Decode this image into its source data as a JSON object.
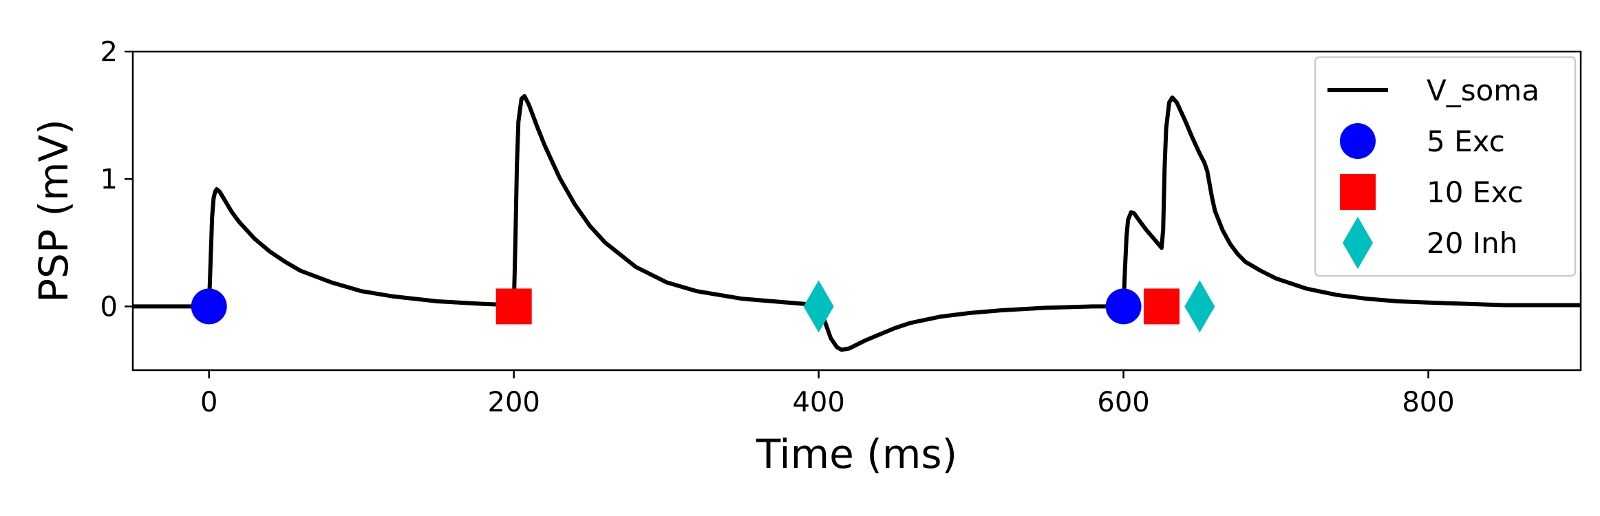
{
  "chart_data": {
    "type": "line",
    "title": "",
    "xlabel": "Time (ms)",
    "ylabel": "PSP (mV)",
    "xlim": [
      -50,
      900
    ],
    "ylim": [
      -0.5,
      2
    ],
    "xticks": [
      0,
      200,
      400,
      600,
      800
    ],
    "yticks": [
      0,
      1,
      2
    ],
    "grid": false,
    "legend_position": "top-right",
    "series": [
      {
        "name": "V_soma",
        "kind": "line",
        "color": "#000000",
        "x": [
          -50,
          0,
          1,
          2,
          3,
          4,
          5,
          7,
          10,
          15,
          20,
          30,
          40,
          50,
          60,
          80,
          100,
          120,
          150,
          180,
          200,
          201,
          202,
          203,
          205,
          207,
          210,
          215,
          220,
          230,
          240,
          250,
          260,
          280,
          300,
          320,
          350,
          380,
          400,
          402,
          405,
          408,
          412,
          415,
          420,
          425,
          430,
          440,
          450,
          460,
          480,
          500,
          520,
          550,
          580,
          600,
          601,
          602,
          603,
          605,
          607,
          610,
          615,
          620,
          625,
          626,
          627,
          628,
          630,
          632,
          635,
          640,
          645,
          650,
          653,
          655,
          658,
          660,
          665,
          670,
          675,
          680,
          690,
          700,
          720,
          740,
          760,
          780,
          800,
          850,
          900
        ],
        "y": [
          0,
          0,
          0.35,
          0.7,
          0.85,
          0.9,
          0.92,
          0.9,
          0.84,
          0.74,
          0.66,
          0.53,
          0.43,
          0.35,
          0.28,
          0.19,
          0.12,
          0.08,
          0.04,
          0.02,
          0.01,
          0.5,
          1.1,
          1.45,
          1.63,
          1.65,
          1.58,
          1.42,
          1.27,
          1.01,
          0.8,
          0.63,
          0.5,
          0.31,
          0.19,
          0.12,
          0.06,
          0.03,
          0.01,
          -0.05,
          -0.15,
          -0.25,
          -0.32,
          -0.34,
          -0.33,
          -0.3,
          -0.27,
          -0.22,
          -0.17,
          -0.13,
          -0.08,
          -0.05,
          -0.03,
          -0.01,
          0,
          0,
          0.3,
          0.55,
          0.68,
          0.74,
          0.73,
          0.68,
          0.6,
          0.53,
          0.46,
          0.6,
          1.1,
          1.4,
          1.6,
          1.64,
          1.6,
          1.47,
          1.33,
          1.2,
          1.13,
          1.06,
          0.86,
          0.75,
          0.6,
          0.49,
          0.41,
          0.35,
          0.28,
          0.22,
          0.14,
          0.09,
          0.06,
          0.04,
          0.03,
          0.01,
          0.01
        ]
      },
      {
        "name": "5 Exc",
        "kind": "marker",
        "marker": "circle",
        "color": "#0000ff",
        "x": [
          0,
          600
        ],
        "y": [
          0,
          0
        ]
      },
      {
        "name": "10 Exc",
        "kind": "marker",
        "marker": "square",
        "color": "#ff0000",
        "x": [
          200,
          625
        ],
        "y": [
          0,
          0
        ]
      },
      {
        "name": "20 Inh",
        "kind": "marker",
        "marker": "diamond",
        "color": "#00bfbf",
        "x": [
          400,
          650
        ],
        "y": [
          0,
          0
        ]
      }
    ]
  }
}
